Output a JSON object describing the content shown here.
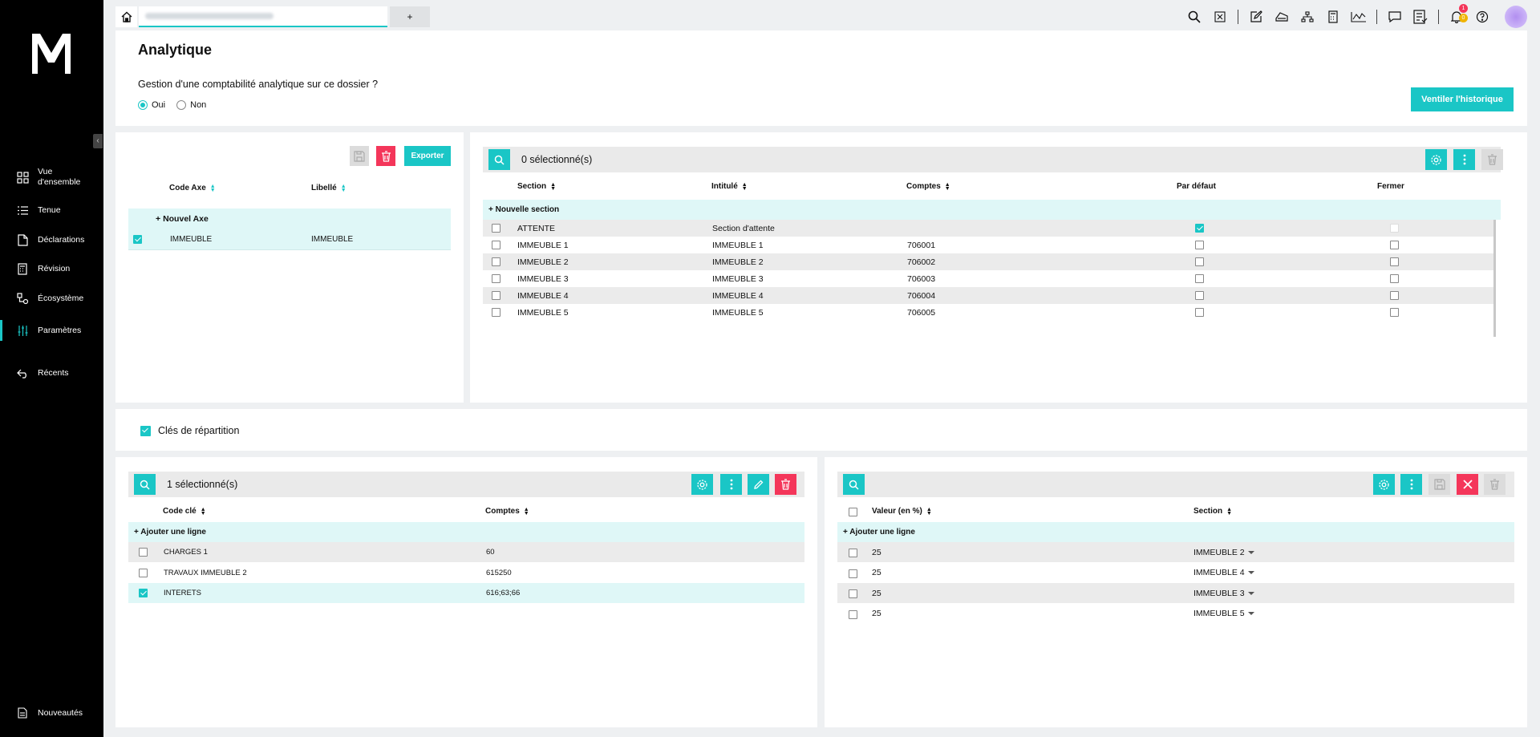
{
  "colors": {
    "accent": "#1ac6c6",
    "danger": "#f4365a",
    "sidebar_bg": "#000000"
  },
  "sidebar": {
    "items": [
      {
        "label": "Vue d'ensemble",
        "icon": "grid-icon"
      },
      {
        "label": "Tenue",
        "icon": "list-icon"
      },
      {
        "label": "Déclarations",
        "icon": "document-icon"
      },
      {
        "label": "Révision",
        "icon": "calculator-icon"
      },
      {
        "label": "Écosystème",
        "icon": "network-icon"
      },
      {
        "label": "Paramètres",
        "icon": "sliders-icon",
        "active": true
      },
      {
        "label": "Récents",
        "icon": "back-arrow-icon"
      }
    ],
    "bottom": {
      "label": "Nouveautés",
      "icon": "news-icon"
    }
  },
  "tabs": {
    "plus": "+"
  },
  "notifications": {
    "count_red": "1",
    "count_yellow": "0"
  },
  "header": {
    "title": "Analytique",
    "question": "Gestion d'une comptabilité analytique sur ce dossier ?",
    "option_yes": "Oui",
    "option_no": "Non",
    "ventiler_button": "Ventiler l'historique"
  },
  "axes": {
    "export_button": "Exporter",
    "columns": [
      "Code Axe",
      "Libellé"
    ],
    "new_row": "Nouvel Axe",
    "rows": [
      {
        "code": "IMMEUBLE",
        "libelle": "IMMEUBLE",
        "checked": true
      }
    ]
  },
  "sections": {
    "selected": "0 sélectionné(s)",
    "columns": [
      "Section",
      "Intitulé",
      "Comptes",
      "Par défaut",
      "Fermer"
    ],
    "new_row": "+ Nouvelle section",
    "rows": [
      {
        "section": "ATTENTE",
        "intitule": "Section d'attente",
        "comptes": "",
        "defaut": true
      },
      {
        "section": "IMMEUBLE 1",
        "intitule": "IMMEUBLE 1",
        "comptes": "706001",
        "defaut": false
      },
      {
        "section": "IMMEUBLE 2",
        "intitule": "IMMEUBLE 2",
        "comptes": "706002",
        "defaut": false
      },
      {
        "section": "IMMEUBLE 3",
        "intitule": "IMMEUBLE 3",
        "comptes": "706003",
        "defaut": false
      },
      {
        "section": "IMMEUBLE 4",
        "intitule": "IMMEUBLE 4",
        "comptes": "706004",
        "defaut": false
      },
      {
        "section": "IMMEUBLE 5",
        "intitule": "IMMEUBLE 5",
        "comptes": "706005",
        "defaut": false
      }
    ]
  },
  "cles": {
    "label": "Clés de répartition",
    "checked": true,
    "selected": "1 sélectionné(s)",
    "columns": [
      "Code clé",
      "Comptes"
    ],
    "new_row": "+ Ajouter une ligne",
    "rows": [
      {
        "code": "CHARGES 1",
        "comptes": "60",
        "checked": false
      },
      {
        "code": "TRAVAUX IMMEUBLE 2",
        "comptes": "615250",
        "checked": false
      },
      {
        "code": "INTERETS",
        "comptes": "616;63;66",
        "checked": true
      }
    ]
  },
  "repartition": {
    "columns": [
      "Valeur (en %)",
      "Section"
    ],
    "new_row": "+ Ajouter une ligne",
    "rows": [
      {
        "valeur": "25",
        "section": "IMMEUBLE 2"
      },
      {
        "valeur": "25",
        "section": "IMMEUBLE 4"
      },
      {
        "valeur": "25",
        "section": "IMMEUBLE 3"
      },
      {
        "valeur": "25",
        "section": "IMMEUBLE 5"
      }
    ]
  }
}
